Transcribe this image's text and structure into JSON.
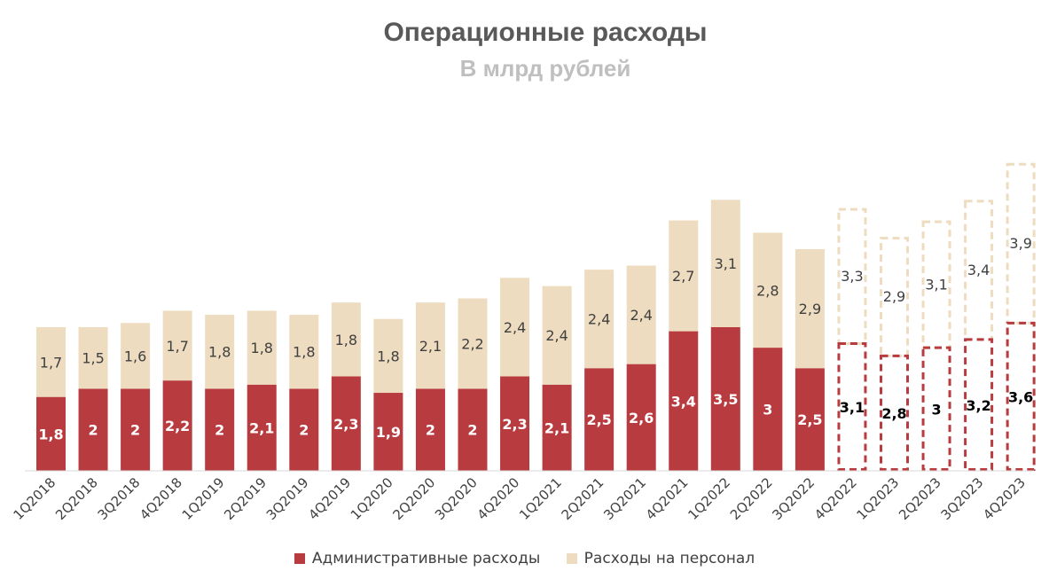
{
  "chart_data": {
    "type": "bar",
    "stacked": true,
    "title": "Операционные расходы",
    "subtitle": "В млрд рублей",
    "categories": [
      "1Q2018",
      "2Q2018",
      "3Q2018",
      "4Q2018",
      "1Q2019",
      "2Q2019",
      "3Q2019",
      "4Q2019",
      "1Q2020",
      "2Q2020",
      "3Q2020",
      "4Q2020",
      "1Q2021",
      "2Q2021",
      "3Q2021",
      "4Q2021",
      "1Q2022",
      "2Q2022",
      "3Q2022",
      "4Q2022",
      "1Q2023",
      "2Q2023",
      "3Q2023",
      "4Q2023"
    ],
    "forecast_start_index": 19,
    "series": [
      {
        "name": "Административные расходы",
        "color": "#b83b3f",
        "values": [
          1.8,
          2,
          2,
          2.2,
          2,
          2.1,
          2,
          2.3,
          1.9,
          2,
          2,
          2.3,
          2.1,
          2.5,
          2.6,
          3.4,
          3.5,
          3,
          2.5,
          3.1,
          2.8,
          3,
          3.2,
          3.6
        ],
        "labels": [
          "1,8",
          "2",
          "2",
          "2,2",
          "2",
          "2,1",
          "2",
          "2,3",
          "1,9",
          "2",
          "2",
          "2,3",
          "2,1",
          "2,5",
          "2,6",
          "3,4",
          "3,5",
          "3",
          "2,5",
          "3,1",
          "2,8",
          "3",
          "3,2",
          "3,6"
        ]
      },
      {
        "name": "Расходы на персонал",
        "color": "#eddcbf",
        "values": [
          1.7,
          1.5,
          1.6,
          1.7,
          1.8,
          1.8,
          1.8,
          1.8,
          1.8,
          2.1,
          2.2,
          2.4,
          2.4,
          2.4,
          2.4,
          2.7,
          3.1,
          2.8,
          2.9,
          3.3,
          2.9,
          3.1,
          3.4,
          3.9
        ],
        "labels": [
          "1,7",
          "1,5",
          "1,6",
          "1,7",
          "1,8",
          "1,8",
          "1,8",
          "1,8",
          "1,8",
          "2,1",
          "2,2",
          "2,4",
          "2,4",
          "2,4",
          "2,4",
          "2,7",
          "3,1",
          "2,8",
          "2,9",
          "3,3",
          "2,9",
          "3,1",
          "3,4",
          "3,9"
        ]
      }
    ],
    "ylim": [
      0,
      7.7
    ],
    "grid": false,
    "legend_position": "bottom"
  }
}
